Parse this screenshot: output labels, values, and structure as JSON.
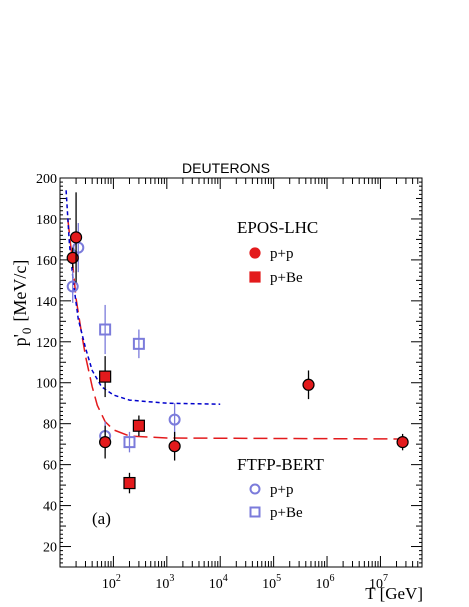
{
  "chart_data": {
    "type": "scatter",
    "title": "DEUTERONS",
    "xlabel": "T  [GeV]",
    "ylabel_main": "p'",
    "ylabel_sub": "0",
    "ylabel_unit": "[MeV/c]",
    "panel_label": "(a)",
    "x_scale": "log",
    "xlim": [
      10,
      60000000
    ],
    "ylim": [
      10,
      200
    ],
    "grid": false,
    "x_ticks": [
      {
        "value": 100,
        "base": "10",
        "exp": "2"
      },
      {
        "value": 1000,
        "base": "10",
        "exp": "3"
      },
      {
        "value": 10000,
        "base": "10",
        "exp": "4"
      },
      {
        "value": 100000,
        "base": "10",
        "exp": "5"
      },
      {
        "value": 1000000,
        "base": "10",
        "exp": "6"
      },
      {
        "value": 10000000,
        "base": "10",
        "exp": "7"
      }
    ],
    "y_ticks": [
      "20",
      "40",
      "60",
      "80",
      "100",
      "120",
      "140",
      "160",
      "180",
      "200"
    ],
    "legend_groups": [
      {
        "title": "EPOS-LHC",
        "entries": [
          {
            "label": "p+p",
            "marker": "filled-circle"
          },
          {
            "label": "p+Be",
            "marker": "filled-square"
          }
        ]
      },
      {
        "title": "FTFP-BERT",
        "entries": [
          {
            "label": "p+p",
            "marker": "open-circle"
          },
          {
            "label": "p+Be",
            "marker": "open-square"
          }
        ]
      }
    ],
    "series": [
      {
        "key": "epos_pp",
        "marker": "filled-circle",
        "color": "#e31a1c",
        "points": [
          {
            "x": 17.3,
            "y": 161,
            "err": 5
          },
          {
            "x": 20,
            "y": 171,
            "err": 22
          },
          {
            "x": 70,
            "y": 71,
            "err": 8
          },
          {
            "x": 1400,
            "y": 69,
            "err": 7
          },
          {
            "x": 450000,
            "y": 99,
            "err": 7
          },
          {
            "x": 26000000,
            "y": 71,
            "err": 4
          }
        ]
      },
      {
        "key": "epos_pbe",
        "marker": "filled-square",
        "color": "#e31a1c",
        "points": [
          {
            "x": 70,
            "y": 103,
            "err": 10
          },
          {
            "x": 200,
            "y": 51,
            "err": 5
          },
          {
            "x": 300,
            "y": 79,
            "err": 5
          }
        ]
      },
      {
        "key": "ftfp_pp",
        "marker": "open-circle",
        "color": "#7b7bdb",
        "points": [
          {
            "x": 17.3,
            "y": 147,
            "err": 8
          },
          {
            "x": 22,
            "y": 166,
            "err": 12
          },
          {
            "x": 70,
            "y": 74,
            "err": 7
          },
          {
            "x": 1400,
            "y": 82,
            "err": 8
          }
        ]
      },
      {
        "key": "ftfp_pbe",
        "marker": "open-square",
        "color": "#7b7bdb",
        "points": [
          {
            "x": 70,
            "y": 126,
            "err": 12
          },
          {
            "x": 200,
            "y": 71,
            "err": 5
          },
          {
            "x": 300,
            "y": 119,
            "err": 7
          }
        ]
      }
    ],
    "fits": [
      {
        "key": "epos_fit",
        "style": "long-dash",
        "color": "#e31a1c",
        "points": [
          [
            14,
            180
          ],
          [
            17,
            160
          ],
          [
            20,
            141
          ],
          [
            25,
            125
          ],
          [
            30,
            113
          ],
          [
            40,
            98
          ],
          [
            50,
            89
          ],
          [
            70,
            81
          ],
          [
            100,
            77
          ],
          [
            200,
            74
          ],
          [
            1000,
            73
          ],
          [
            30000000,
            72.5
          ]
        ]
      },
      {
        "key": "ftfp_fit",
        "style": "short-dash",
        "color": "#0000cc",
        "points": [
          [
            13,
            194
          ],
          [
            15,
            168
          ],
          [
            18,
            148
          ],
          [
            22,
            131
          ],
          [
            30,
            117
          ],
          [
            40,
            106
          ],
          [
            60,
            98
          ],
          [
            100,
            94
          ],
          [
            200,
            91.5
          ],
          [
            1000,
            90
          ],
          [
            10000,
            89.5
          ]
        ]
      }
    ]
  }
}
